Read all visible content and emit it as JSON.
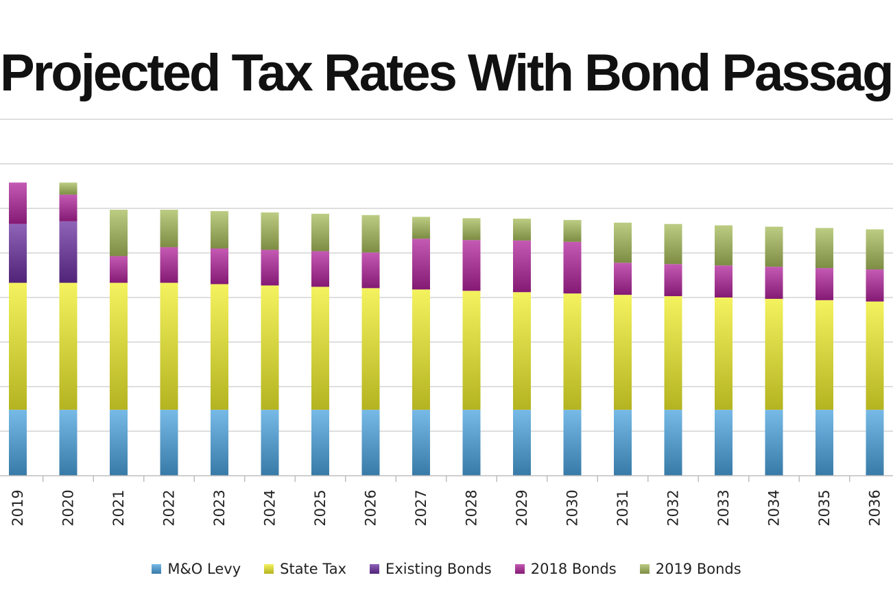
{
  "chart_data": {
    "type": "bar",
    "stacked": true,
    "title": "Projected Tax Rates With Bond Passage",
    "xlabel": "",
    "ylabel": "",
    "ylim": [
      0,
      8
    ],
    "grid": true,
    "legend_position": "bottom",
    "categories": [
      "2019",
      "2020",
      "2021",
      "2022",
      "2023",
      "2024",
      "2025",
      "2026",
      "2027",
      "2028",
      "2029",
      "2030",
      "2031",
      "2032",
      "2033",
      "2034",
      "2035",
      "2036"
    ],
    "series": [
      {
        "name": "M&O Levy",
        "color": "#4aa3df",
        "values": [
          1.48,
          1.48,
          1.48,
          1.48,
          1.48,
          1.48,
          1.48,
          1.48,
          1.48,
          1.48,
          1.48,
          1.48,
          1.48,
          1.48,
          1.48,
          1.48,
          1.48,
          1.48
        ]
      },
      {
        "name": "State Tax",
        "color": "#f0ee2a",
        "values": [
          2.85,
          2.85,
          2.85,
          2.85,
          2.82,
          2.79,
          2.76,
          2.73,
          2.7,
          2.67,
          2.64,
          2.61,
          2.58,
          2.55,
          2.52,
          2.49,
          2.46,
          2.43
        ]
      },
      {
        "name": "Existing Bonds",
        "color": "#6a2fa0",
        "values": [
          1.32,
          1.38,
          0,
          0,
          0,
          0,
          0,
          0,
          0,
          0,
          0,
          0,
          0,
          0,
          0,
          0,
          0,
          0
        ]
      },
      {
        "name": "2018 Bonds",
        "color": "#b0239a",
        "values": [
          0.93,
          0.6,
          0.6,
          0.8,
          0.8,
          0.8,
          0.8,
          0.8,
          1.14,
          1.14,
          1.16,
          1.16,
          0.72,
          0.72,
          0.72,
          0.72,
          0.72,
          0.72
        ]
      },
      {
        "name": "2019 Bonds",
        "color": "#a6bc5a",
        "values": [
          0,
          0.27,
          1.04,
          0.84,
          0.84,
          0.84,
          0.84,
          0.84,
          0.49,
          0.49,
          0.49,
          0.49,
          0.9,
          0.9,
          0.9,
          0.9,
          0.9,
          0.9
        ]
      }
    ]
  }
}
